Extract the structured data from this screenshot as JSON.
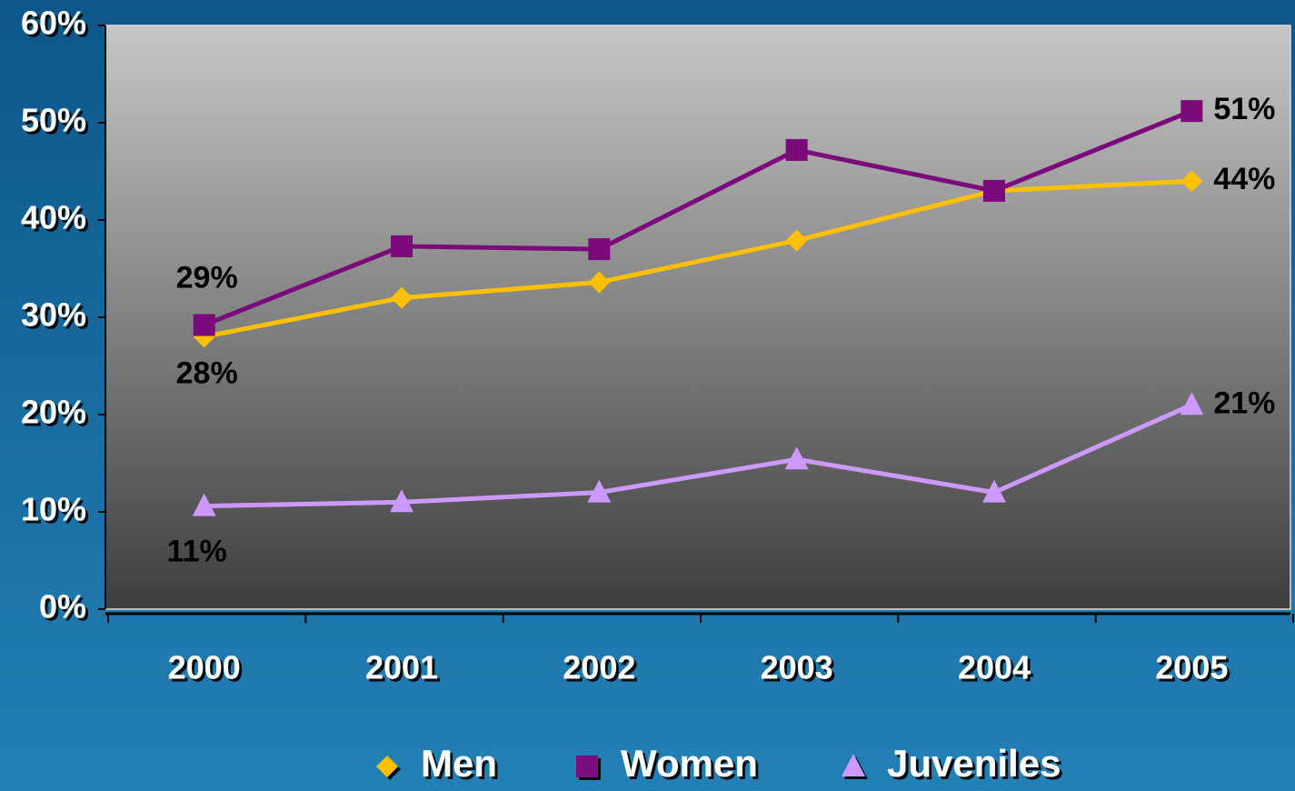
{
  "chart_data": {
    "type": "line",
    "categories": [
      "2000",
      "2001",
      "2002",
      "2003",
      "2004",
      "2005"
    ],
    "series": [
      {
        "name": "Men",
        "color": "#ffc000",
        "marker": "diamond",
        "values": [
          28,
          32,
          33.6,
          37.9,
          43,
          44
        ],
        "value_labels": [
          "28%",
          null,
          null,
          null,
          null,
          "44%"
        ]
      },
      {
        "name": "Women",
        "color": "#7b0a7b",
        "marker": "square",
        "values": [
          29.2,
          37.3,
          37,
          47.2,
          43,
          51.2
        ],
        "value_labels": [
          "29%",
          null,
          null,
          null,
          null,
          "51%"
        ]
      },
      {
        "name": "Juveniles",
        "color": "#cc99ff",
        "marker": "triangle",
        "values": [
          10.6,
          11,
          12,
          15.4,
          12,
          21
        ],
        "value_labels": [
          "11%",
          null,
          null,
          null,
          null,
          "21%"
        ]
      }
    ],
    "ylim": [
      0,
      60
    ],
    "yticks": [
      {
        "value": 0,
        "label": "0%"
      },
      {
        "value": 10,
        "label": "10%"
      },
      {
        "value": 20,
        "label": "20%"
      },
      {
        "value": 30,
        "label": "30%"
      },
      {
        "value": 40,
        "label": "40%"
      },
      {
        "value": 50,
        "label": "50%"
      },
      {
        "value": 60,
        "label": "60%"
      }
    ],
    "legend": "bottom"
  }
}
